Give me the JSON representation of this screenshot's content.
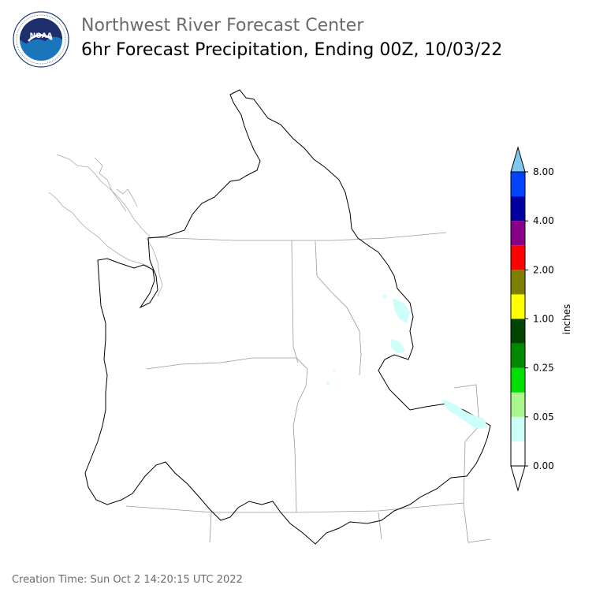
{
  "header": {
    "org_title": "Northwest River Forecast Center",
    "product_title": "6hr Forecast Precipitation, Ending 00Z, 10/03/22"
  },
  "logo": {
    "text": "NOAA",
    "ring_text": "NATIONAL OCEANIC AND ATMOSPHERIC ADMINISTRATION · U.S. DEPARTMENT OF COMMERCE",
    "icon": "noaa-logo"
  },
  "footer": {
    "creation_time": "Creation Time: Sun Oct 2 14:20:15 UTC 2022"
  },
  "legend": {
    "unit": "inches",
    "tick_labels": [
      "0.00",
      "0.05",
      "0.25",
      "1.00",
      "2.00",
      "4.00",
      "8.00"
    ],
    "bins": [
      {
        "color": "#ffffff"
      },
      {
        "color": "#ccfffa"
      },
      {
        "color": "#aaf78e"
      },
      {
        "color": "#00e000"
      },
      {
        "color": "#008800"
      },
      {
        "color": "#004400"
      },
      {
        "color": "#ffff00"
      },
      {
        "color": "#808000"
      },
      {
        "color": "#ff0000"
      },
      {
        "color": "#880088"
      },
      {
        "color": "#0000a0"
      },
      {
        "color": "#0044ff"
      }
    ],
    "over_color": "#7ec8f0",
    "under_color": "#ffffff"
  },
  "map": {
    "precip_color": "#ccfffa",
    "basin_outline_color": "#000000",
    "state_border_color": "#999999"
  }
}
